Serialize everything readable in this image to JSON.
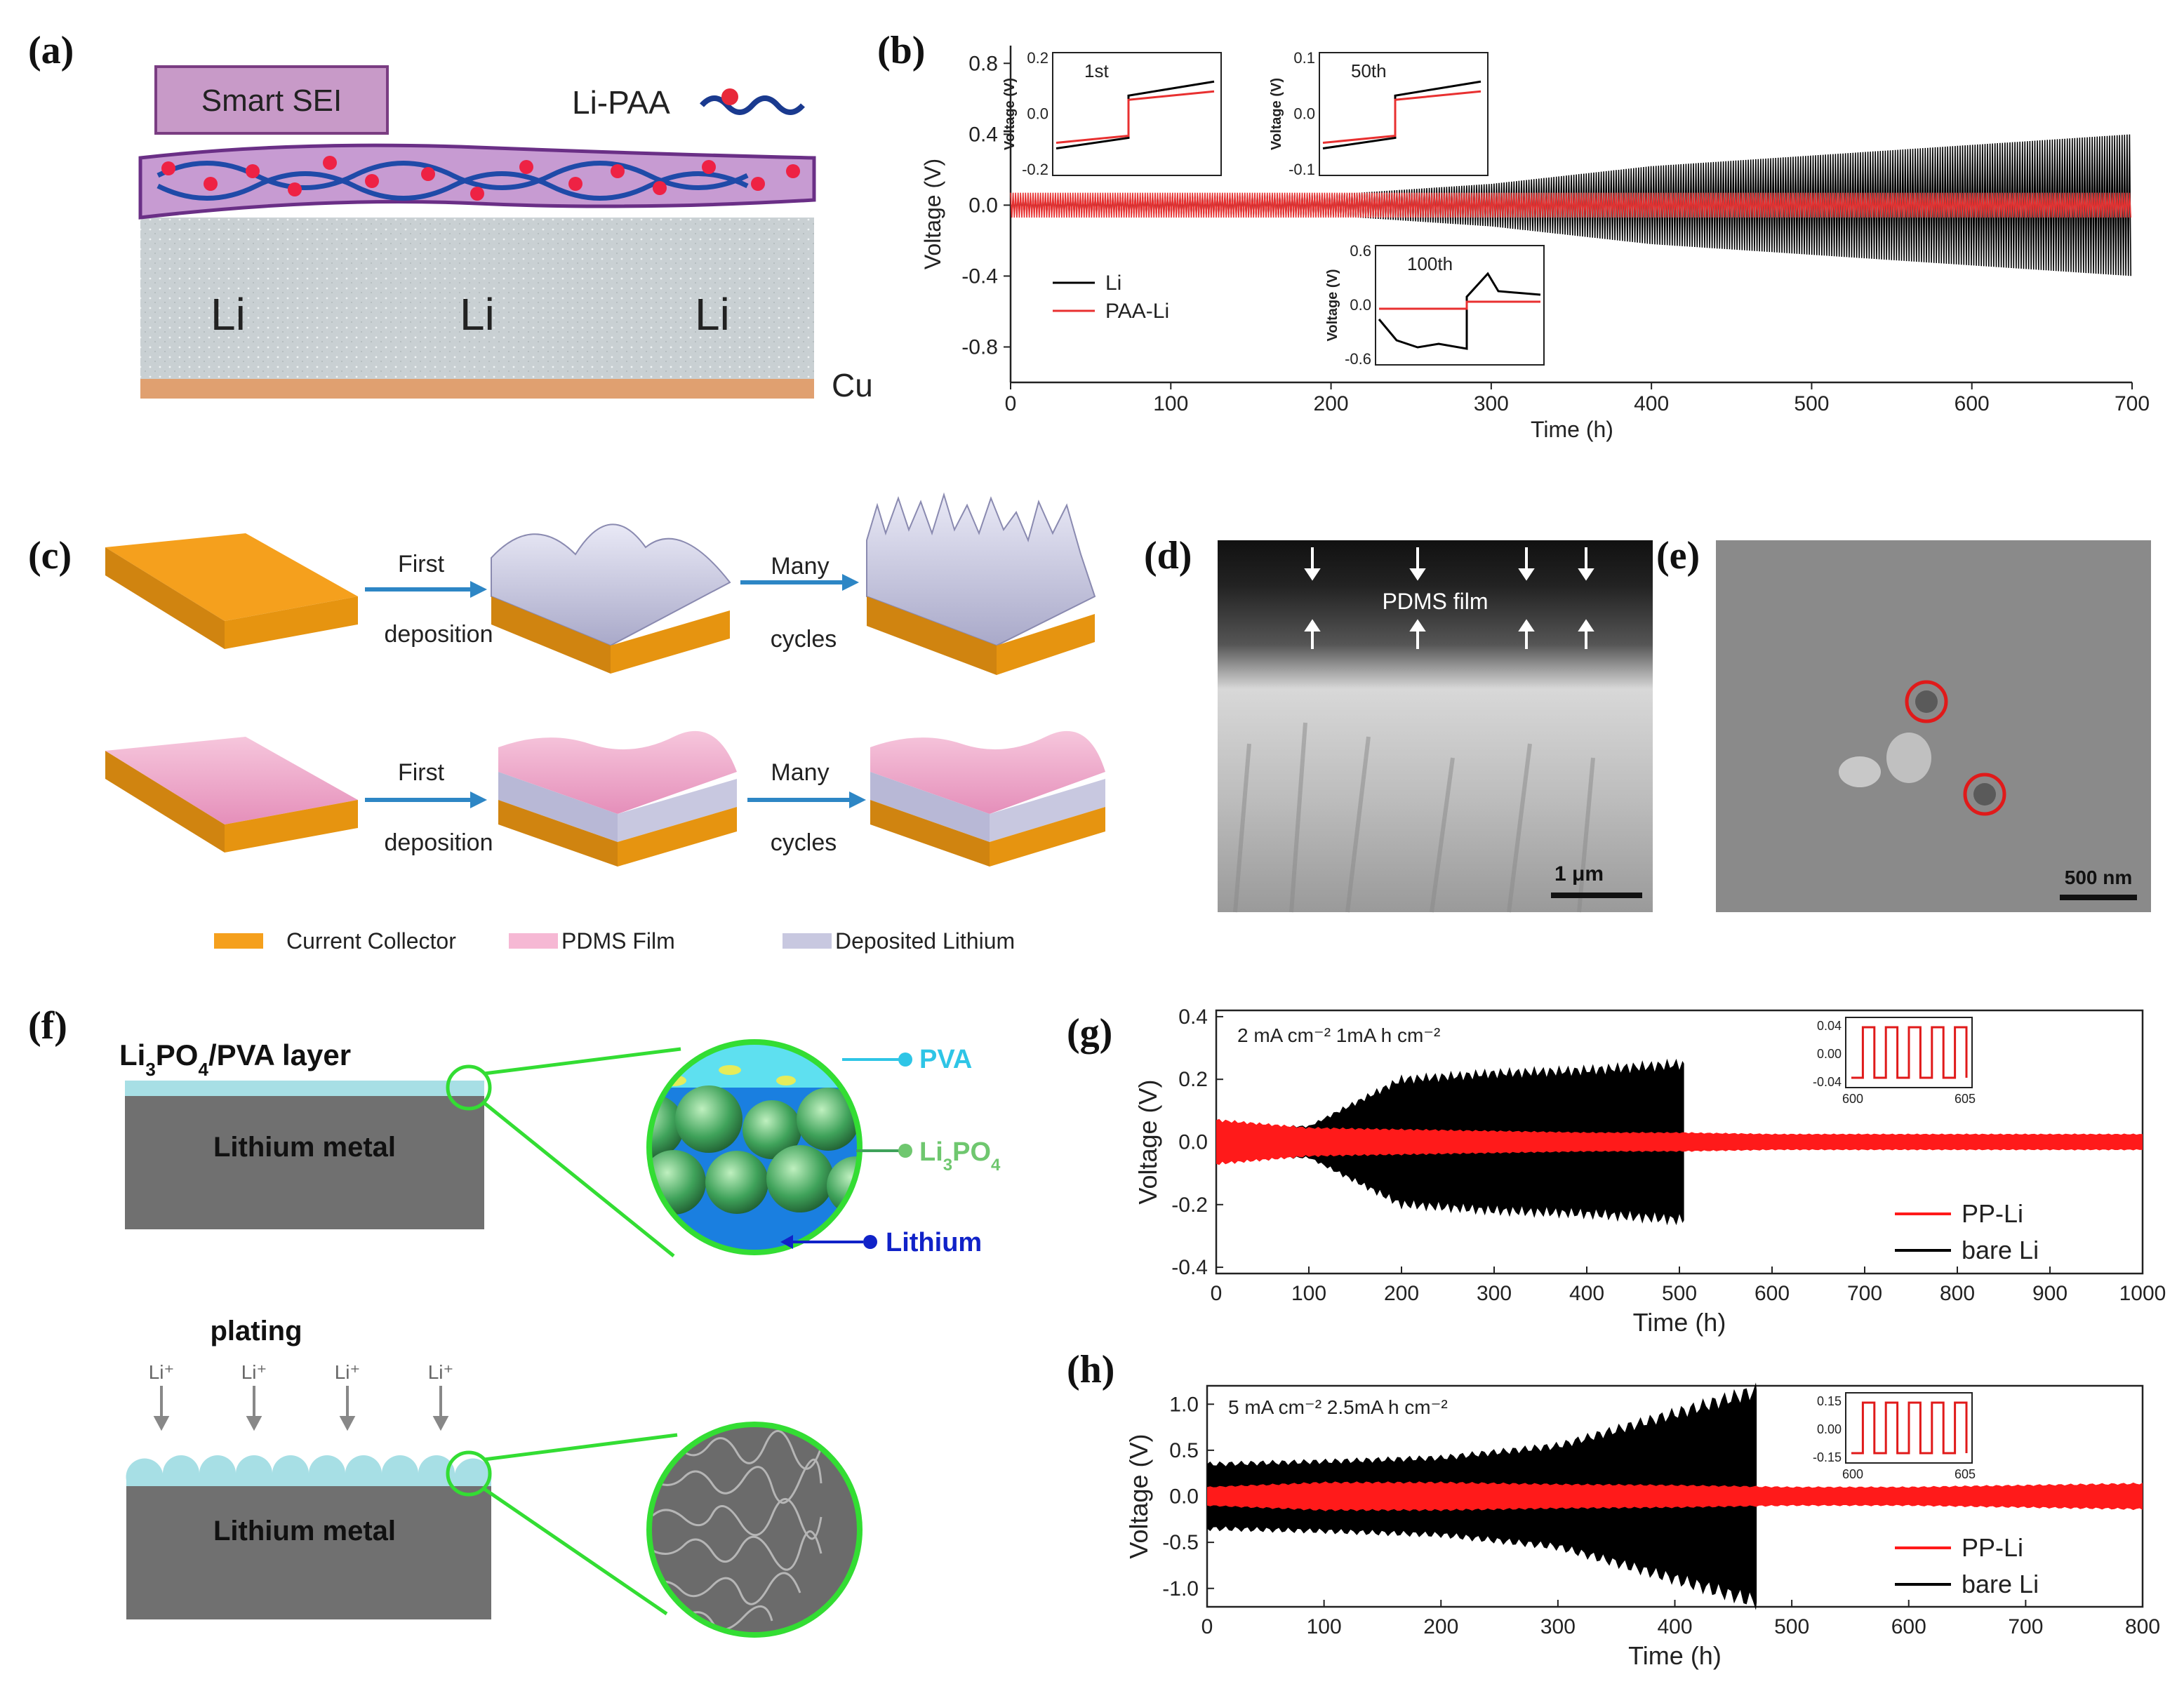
{
  "panels": {
    "a": {
      "label": "(a)",
      "smart_sei": "Smart SEI",
      "li_paa": "Li-PAA",
      "li": [
        "Li",
        "Li",
        "Li"
      ],
      "cu": "Cu"
    },
    "b": {
      "label": "(b)"
    },
    "c": {
      "label": "(c)",
      "first": "First",
      "deposition": "deposition",
      "many": "Many",
      "cycles": "cycles",
      "legend": [
        "Current Collector",
        "PDMS Film",
        "Deposited Lithium"
      ]
    },
    "d": {
      "label": "(d)",
      "film": "PDMS film",
      "scale": "1 μm"
    },
    "e": {
      "label": "(e)",
      "scale": "500 nm"
    },
    "f": {
      "label": "(f)",
      "layer_pre": "Li",
      "layer_sub1": "3",
      "layer_mid": "PO",
      "layer_sub2": "4",
      "layer_post": "/PVA  layer",
      "metal": "Lithium metal",
      "pva": "PVA",
      "li3po4_pre": "Li",
      "li3po4_sub1": "3",
      "li3po4_mid": "PO",
      "li3po4_sub2": "4",
      "lithium": "Lithium",
      "plating": "plating",
      "liplus": "Li⁺"
    },
    "g": {
      "label": "(g)"
    },
    "h": {
      "label": "(h)"
    }
  },
  "chart_data": [
    {
      "id": "b",
      "type": "line",
      "xlabel": "Time (h)",
      "ylabel": "Voltage (V)",
      "xlim": [
        0,
        700
      ],
      "ylim": [
        -1.0,
        0.9
      ],
      "xticks": [
        0,
        100,
        200,
        300,
        400,
        500,
        600,
        700
      ],
      "yticks": [
        -0.8,
        -0.4,
        0.0,
        0.4,
        0.8
      ],
      "series": [
        {
          "name": "Li",
          "color": "#000000",
          "x": [
            0,
            100,
            200,
            300,
            400,
            500,
            600,
            700
          ],
          "amplitude": [
            0.04,
            0.05,
            0.06,
            0.12,
            0.22,
            0.28,
            0.34,
            0.4
          ]
        },
        {
          "name": "PAA-Li",
          "color": "#e83030",
          "x": [
            0,
            100,
            200,
            300,
            400,
            500,
            600,
            700
          ],
          "amplitude": [
            0.07,
            0.07,
            0.07,
            0.07,
            0.07,
            0.07,
            0.07,
            0.07
          ]
        }
      ],
      "insets": [
        {
          "title": "1st",
          "ylabel": "Voltage (V)",
          "yticks": [
            "0.2",
            "0.0",
            "-0.2"
          ]
        },
        {
          "title": "50th",
          "ylabel": "Voltage (V)",
          "yticks": [
            "0.1",
            "0.0",
            "-0.1"
          ]
        },
        {
          "title": "100th",
          "ylabel": "Voltage (V)",
          "yticks": [
            "0.6",
            "0.0",
            "-0.6"
          ]
        }
      ]
    },
    {
      "id": "g",
      "type": "line",
      "annotation": "2 mA cm⁻² 1mA h cm⁻²",
      "xlabel": "Time (h)",
      "ylabel": "Voltage (V)",
      "xlim": [
        0,
        1000
      ],
      "ylim": [
        -0.42,
        0.42
      ],
      "xticks": [
        0,
        100,
        200,
        300,
        400,
        500,
        600,
        700,
        800,
        900,
        1000
      ],
      "yticks": [
        "0.4",
        "0.2",
        "0.0",
        "-0.2",
        "-0.4"
      ],
      "series": [
        {
          "name": "PP-Li",
          "color": "#ff1a1a",
          "x": [
            0,
            100,
            200,
            300,
            400,
            500,
            600,
            700,
            800,
            900,
            1000
          ],
          "amplitude": [
            0.07,
            0.045,
            0.04,
            0.035,
            0.03,
            0.03,
            0.025,
            0.025,
            0.025,
            0.025,
            0.025
          ]
        },
        {
          "name": "bare Li",
          "color": "#000000",
          "x": [
            0,
            100,
            200,
            300,
            400,
            505
          ],
          "amplitude": [
            0.05,
            0.05,
            0.2,
            0.22,
            0.23,
            0.25
          ]
        }
      ],
      "inset": {
        "xticks": [
          "600",
          "605"
        ],
        "yticks": [
          "0.04",
          "0.00",
          "-0.04"
        ]
      }
    },
    {
      "id": "h",
      "type": "line",
      "annotation": "5 mA cm⁻² 2.5mA h cm⁻²",
      "xlabel": "Time (h)",
      "ylabel": "Voltage (V)",
      "xlim": [
        0,
        800
      ],
      "ylim": [
        -1.2,
        1.2
      ],
      "xticks": [
        0,
        100,
        200,
        300,
        400,
        500,
        600,
        700,
        800
      ],
      "yticks": [
        "1.0",
        "0.5",
        "0.0",
        "-0.5",
        "-1.0"
      ],
      "series": [
        {
          "name": "PP-Li",
          "color": "#ff1a1a",
          "x": [
            0,
            100,
            200,
            300,
            400,
            500,
            600,
            700,
            800
          ],
          "amplitude": [
            0.1,
            0.15,
            0.15,
            0.13,
            0.12,
            0.1,
            0.1,
            0.12,
            0.14
          ]
        },
        {
          "name": "bare Li",
          "color": "#000000",
          "x": [
            0,
            100,
            200,
            300,
            400,
            470
          ],
          "amplitude": [
            0.35,
            0.38,
            0.42,
            0.55,
            0.9,
            1.15
          ]
        }
      ],
      "inset": {
        "xticks": [
          "600",
          "605"
        ],
        "yticks": [
          "0.15",
          "0.00",
          "-0.15"
        ]
      }
    }
  ]
}
